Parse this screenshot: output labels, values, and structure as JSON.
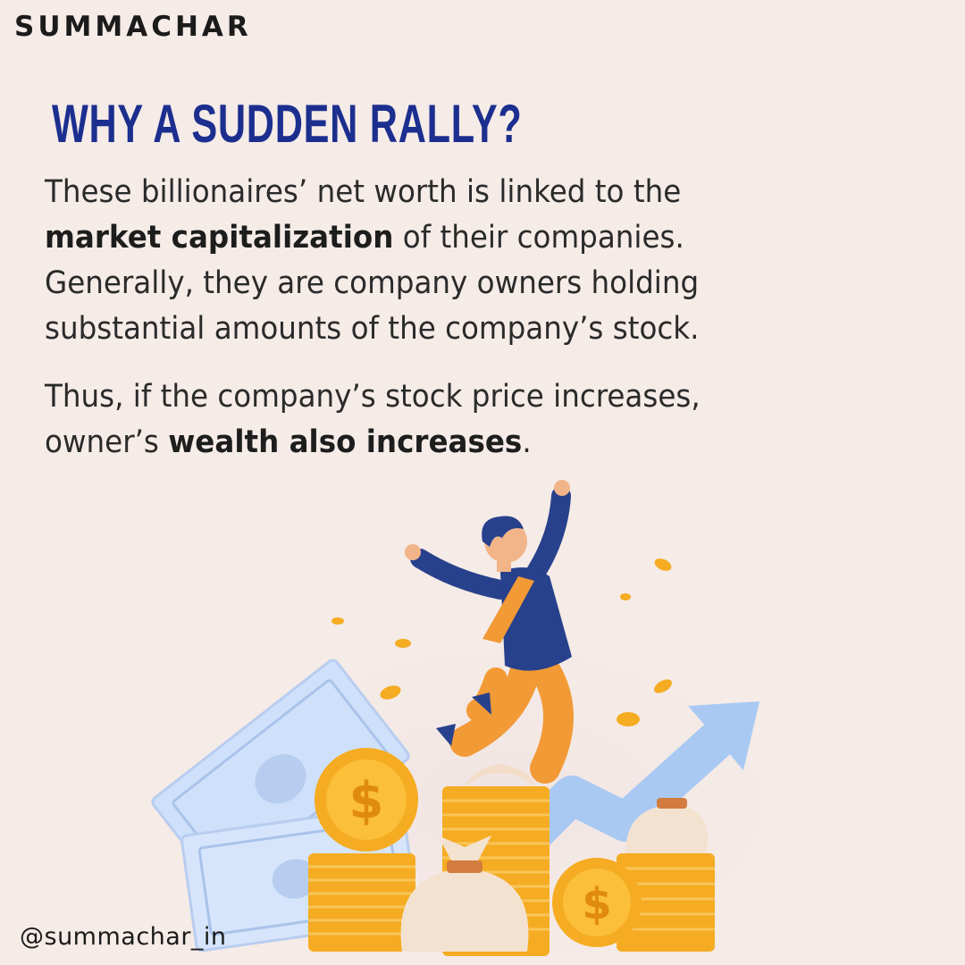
{
  "brand": {
    "name": "SUMMACHAR"
  },
  "headline": "WHY A SUDDEN RALLY?",
  "paragraph1": {
    "l1": "These billionaires’ net worth is linked to the",
    "l2_bold": "market capitalization",
    "l2_rest": " of their companies.",
    "l3": "Generally, they are company owners holding",
    "l4": "substantial amounts of the company’s stock."
  },
  "paragraph2": {
    "l1": "Thus, if the company’s stock price increases,",
    "l2_pre": "owner’s ",
    "l2_bold": "wealth also increases",
    "l2_post": "."
  },
  "handle": "@summachar_in",
  "colors": {
    "background": "#f5ebe7",
    "headline": "#1c2f8f",
    "coin": "#f5ac22",
    "arrow": "#a9c9f3",
    "shirt": "#28418c",
    "pants": "#f29a36"
  },
  "illustration": {
    "coin_symbol": "$",
    "icons": [
      "banknote-icon",
      "coin-stack-icon",
      "money-bag-icon",
      "rising-arrow-icon",
      "jumping-man-icon"
    ]
  }
}
